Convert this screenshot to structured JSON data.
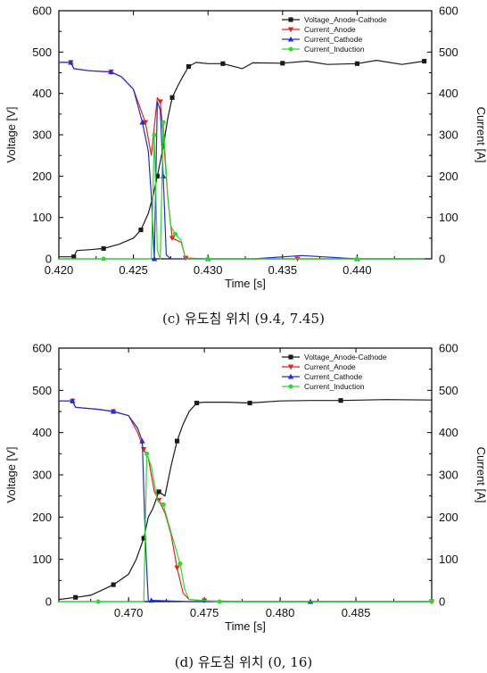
{
  "charts": [
    {
      "id": "c",
      "caption": "(c) 유도침 위치 (9.4, 7.45)",
      "chart_data": {
        "type": "line",
        "xlabel": "Time [s]",
        "ylabel_left": "Voltage [V]",
        "ylabel_right": "Current [A]",
        "xlim": [
          0.42,
          0.445
        ],
        "ylim": [
          0,
          600
        ],
        "x_ticks": [
          "0.420",
          "0.425",
          "0.430",
          "0.435",
          "0.440"
        ],
        "x_tick_values": [
          0.42,
          0.425,
          0.43,
          0.435,
          0.44
        ],
        "y_ticks": [
          "0",
          "100",
          "200",
          "300",
          "400",
          "500",
          "600"
        ],
        "y_tick_values": [
          0,
          100,
          200,
          300,
          400,
          500,
          600
        ],
        "legend_position": "top-right",
        "series": [
          {
            "name": "Voltage_Anode-Cathode",
            "color": "#1a1a1a",
            "marker": "square",
            "x": [
              0.42,
              0.421,
              0.4212,
              0.422,
              0.423,
              0.424,
              0.425,
              0.4255,
              0.426,
              0.4263,
              0.4266,
              0.427,
              0.4273,
              0.4276,
              0.428,
              0.4283,
              0.4287,
              0.4292,
              0.43,
              0.431,
              0.4323,
              0.433,
              0.435,
              0.4366,
              0.438,
              0.44,
              0.4413,
              0.443,
              0.4445
            ],
            "y": [
              5,
              5,
              20,
              22,
              25,
              35,
              50,
              70,
              110,
              150,
              200,
              270,
              340,
              390,
              420,
              440,
              465,
              475,
              472,
              472,
              460,
              474,
              473,
              478,
              470,
              472,
              480,
              470,
              478
            ]
          },
          {
            "name": "Current_Anode",
            "color": "#e8231f",
            "marker": "triangle-down",
            "x": [
              0.42,
              0.4208,
              0.421,
              0.422,
              0.4235,
              0.4242,
              0.425,
              0.4258,
              0.4262,
              0.4266,
              0.4268,
              0.427,
              0.4273,
              0.4276,
              0.4279,
              0.4282,
              0.4285,
              0.43,
              0.433,
              0.436,
              0.44,
              0.4445
            ],
            "y": [
              475,
              475,
              460,
              455,
              452,
              440,
              410,
              330,
              250,
              390,
              380,
              300,
              150,
              50,
              45,
              40,
              2,
              0,
              0,
              0,
              0,
              0
            ]
          },
          {
            "name": "Current_Cathode",
            "color": "#1c2fd8",
            "marker": "triangle-up",
            "x": [
              0.42,
              0.4208,
              0.421,
              0.422,
              0.4235,
              0.4242,
              0.425,
              0.4256,
              0.426,
              0.4262,
              0.4264,
              0.4266,
              0.4268,
              0.427,
              0.4272,
              0.4275,
              0.43,
              0.433,
              0.4363,
              0.44,
              0.4445
            ],
            "y": [
              475,
              475,
              460,
              455,
              452,
              440,
              410,
              330,
              260,
              150,
              0,
              380,
              360,
              200,
              10,
              0,
              0,
              0,
              8,
              0,
              0
            ]
          },
          {
            "name": "Current_Induction",
            "color": "#2fd92f",
            "marker": "circle",
            "x": [
              0.42,
              0.423,
              0.4255,
              0.4262,
              0.4264,
              0.4266,
              0.4268,
              0.427,
              0.4273,
              0.4275,
              0.4278,
              0.4282,
              0.4285,
              0.43,
              0.433,
              0.436,
              0.44,
              0.4445
            ],
            "y": [
              0,
              0,
              0,
              0,
              300,
              20,
              0,
              330,
              150,
              80,
              60,
              45,
              0,
              0,
              0,
              0,
              0,
              0
            ]
          }
        ]
      }
    },
    {
      "id": "d",
      "caption": "(d) 유도침 위치 (0, 16)",
      "chart_data": {
        "type": "line",
        "xlabel": "Time [s]",
        "ylabel_left": "Voltage [V]",
        "ylabel_right": "Current [A]",
        "xlim": [
          0.4654,
          0.49
        ],
        "ylim": [
          0,
          600
        ],
        "x_ticks": [
          "0.470",
          "0.475",
          "0.480",
          "0.485"
        ],
        "x_tick_values": [
          0.47,
          0.475,
          0.48,
          0.485
        ],
        "y_ticks": [
          "0",
          "100",
          "200",
          "300",
          "400",
          "500",
          "600"
        ],
        "y_tick_values": [
          0,
          100,
          200,
          300,
          400,
          500,
          600
        ],
        "legend_position": "top-right",
        "series": [
          {
            "name": "Voltage_Anode-Cathode",
            "color": "#1a1a1a",
            "marker": "square",
            "x": [
              0.4654,
              0.4665,
              0.4675,
              0.4683,
              0.469,
              0.47,
              0.4705,
              0.471,
              0.4713,
              0.4716,
              0.472,
              0.4724,
              0.4728,
              0.4732,
              0.4736,
              0.474,
              0.4745,
              0.475,
              0.4765,
              0.478,
              0.48,
              0.482,
              0.484,
              0.487,
              0.49
            ],
            "y": [
              5,
              10,
              15,
              28,
              40,
              65,
              100,
              150,
              200,
              220,
              260,
              250,
              320,
              380,
              420,
              450,
              470,
              472,
              472,
              470,
              475,
              476,
              476,
              478,
              477
            ]
          },
          {
            "name": "Current_Anode",
            "color": "#e8231f",
            "marker": "triangle-down",
            "x": [
              0.4654,
              0.4663,
              0.4665,
              0.468,
              0.469,
              0.47,
              0.4706,
              0.471,
              0.4713,
              0.4717,
              0.472,
              0.4724,
              0.4728,
              0.4732,
              0.4736,
              0.474,
              0.475,
              0.478,
              0.48,
              0.49
            ],
            "y": [
              475,
              475,
              460,
              455,
              450,
              440,
              400,
              360,
              340,
              260,
              240,
              210,
              160,
              80,
              20,
              5,
              2,
              0,
              0,
              0
            ]
          },
          {
            "name": "Current_Cathode",
            "color": "#1c2fd8",
            "marker": "triangle-up",
            "x": [
              0.4654,
              0.4663,
              0.4665,
              0.468,
              0.469,
              0.47,
              0.4706,
              0.4709,
              0.4711,
              0.4713,
              0.4715,
              0.474,
              0.478,
              0.482,
              0.486,
              0.49
            ],
            "y": [
              475,
              475,
              460,
              455,
              450,
              440,
              410,
              380,
              150,
              0,
              3,
              0,
              0,
              0,
              0,
              0
            ]
          },
          {
            "name": "Current_Induction",
            "color": "#2fd92f",
            "marker": "circle",
            "x": [
              0.4654,
              0.468,
              0.47,
              0.471,
              0.4712,
              0.4715,
              0.4719,
              0.4723,
              0.4726,
              0.473,
              0.4734,
              0.4737,
              0.474,
              0.476,
              0.48,
              0.485,
              0.49
            ],
            "y": [
              0,
              0,
              0,
              0,
              350,
              320,
              240,
              230,
              190,
              140,
              90,
              30,
              5,
              0,
              0,
              0,
              0
            ]
          }
        ]
      }
    }
  ]
}
